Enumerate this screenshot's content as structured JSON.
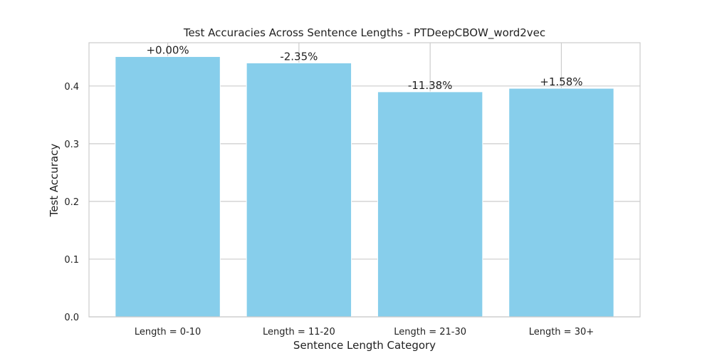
{
  "chart_data": {
    "type": "bar",
    "title": "Test Accuracies Across Sentence Lengths - PTDeepCBOW_word2vec",
    "xlabel": "Sentence Length Category",
    "ylabel": "Test Accuracy",
    "categories": [
      "Length = 0-10",
      "Length = 11-20",
      "Length = 21-30",
      "Length = 30+"
    ],
    "values": [
      0.451,
      0.44,
      0.39,
      0.396
    ],
    "data_labels": [
      "+0.00%",
      "-2.35%",
      "-11.38%",
      "+1.58%"
    ],
    "ylim": [
      0,
      0.475
    ],
    "yticks": [
      0.0,
      0.1,
      0.2,
      0.3,
      0.4
    ],
    "ytick_labels": [
      "0.0",
      "0.1",
      "0.2",
      "0.3",
      "0.4"
    ],
    "bar_color": "#87CEEB",
    "grid": true
  }
}
